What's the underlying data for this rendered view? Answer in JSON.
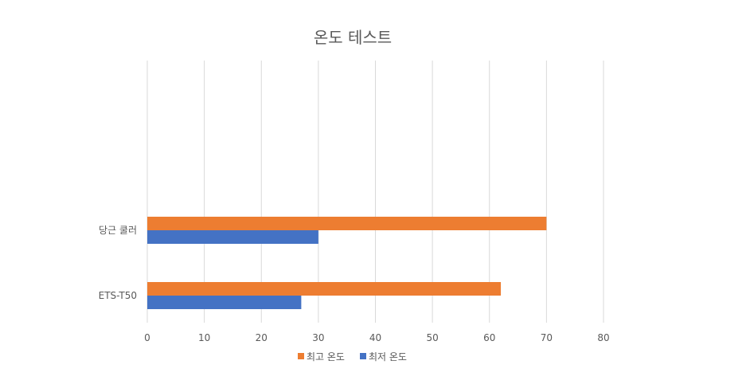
{
  "chart_data": {
    "type": "bar",
    "orientation": "horizontal",
    "title": "온도 테스트",
    "categories": [
      "당근 쿨러",
      "ETS-T50"
    ],
    "series": [
      {
        "name": "최고 온도",
        "color": "#ED7D31",
        "values": [
          70,
          62
        ]
      },
      {
        "name": "최저 온도",
        "color": "#4472C4",
        "values": [
          30,
          27
        ]
      }
    ],
    "xlim": [
      0,
      80
    ],
    "xticks": [
      0,
      10,
      20,
      30,
      40,
      50,
      60,
      70,
      80
    ],
    "grid": true,
    "legend": "bottom"
  }
}
